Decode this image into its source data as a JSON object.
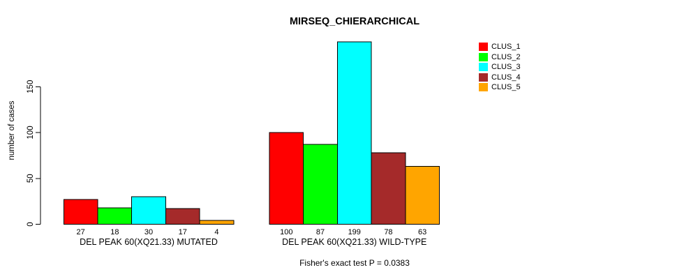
{
  "chart_data": {
    "type": "bar",
    "title": "MIRSEQ_CHIERARCHICAL",
    "ylabel": "number of cases",
    "xlabel": "",
    "yticks": [
      0,
      50,
      100,
      150
    ],
    "ylim": [
      0,
      199
    ],
    "grid": false,
    "legend_position": "right",
    "bar_value_labels": true,
    "categories": [
      "DEL PEAK 60(XQ21.33) MUTATED",
      "DEL PEAK 60(XQ21.33) WILD-TYPE"
    ],
    "series": [
      {
        "name": "CLUS_1",
        "color": "#FF0000",
        "values": [
          27,
          100
        ]
      },
      {
        "name": "CLUS_2",
        "color": "#00FF00",
        "values": [
          18,
          87
        ]
      },
      {
        "name": "CLUS_3",
        "color": "#00FFFF",
        "values": [
          30,
          199
        ]
      },
      {
        "name": "CLUS_4",
        "color": "#A52A2A",
        "values": [
          17,
          78
        ]
      },
      {
        "name": "CLUS_5",
        "color": "#FFA500",
        "values": [
          4,
          63
        ]
      }
    ],
    "annotation": "Fisher's exact test P = 0.0383"
  }
}
